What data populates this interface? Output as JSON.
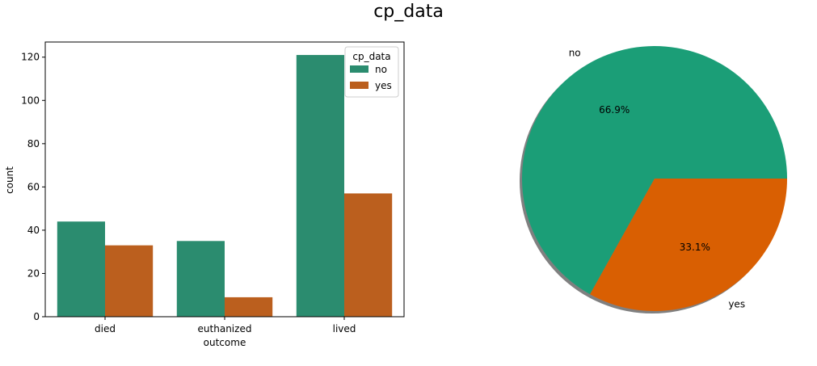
{
  "figure": {
    "title": "cp_data"
  },
  "chart_data": [
    {
      "type": "bar",
      "categories": [
        "died",
        "euthanized",
        "lived"
      ],
      "xlabel": "outcome",
      "ylabel": "count",
      "ylim": [
        0,
        127
      ],
      "yticks": [
        0,
        20,
        40,
        60,
        80,
        100,
        120
      ],
      "grid": false,
      "legend": {
        "title": "cp_data",
        "placement": "top-right"
      },
      "series": [
        {
          "name": "no",
          "color": "#2b8c6f",
          "values": [
            44,
            35,
            121
          ]
        },
        {
          "name": "yes",
          "color": "#bb5f1e",
          "values": [
            33,
            9,
            57
          ]
        }
      ]
    },
    {
      "type": "pie",
      "slices": [
        {
          "label": "no",
          "value": 66.9,
          "pct_label": "66.9%",
          "color": "#1b9e77"
        },
        {
          "label": "yes",
          "value": 33.1,
          "pct_label": "33.1%",
          "color": "#d95f02"
        }
      ],
      "shadow": true
    }
  ]
}
